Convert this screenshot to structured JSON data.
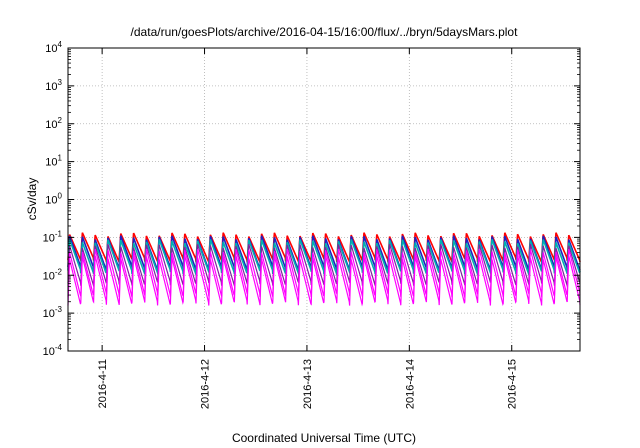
{
  "chart_data": {
    "type": "line",
    "title": "/data/run/goesPlots/archive/2016-04-15/16:00/flux/../bryn/5daysMars.plot",
    "xlabel": "Coordinated Universal Time (UTC)",
    "ylabel": "cSv/day",
    "yscale": "log",
    "ylim": [
      0.0001,
      10000
    ],
    "y_ticks": [
      {
        "base": "10",
        "exp": "-4",
        "value": 0.0001
      },
      {
        "base": "10",
        "exp": "-3",
        "value": 0.001
      },
      {
        "base": "10",
        "exp": "-2",
        "value": 0.01
      },
      {
        "base": "10",
        "exp": "-1",
        "value": 0.1
      },
      {
        "base": "10",
        "exp": "0",
        "value": 1
      },
      {
        "base": "10",
        "exp": "1",
        "value": 10
      },
      {
        "base": "10",
        "exp": "2",
        "value": 100
      },
      {
        "base": "10",
        "exp": "3",
        "value": 1000
      },
      {
        "base": "10",
        "exp": "4",
        "value": 10000
      }
    ],
    "xlim": [
      "2016-04-10T16:00",
      "2016-04-15T16:00"
    ],
    "x_ticks": [
      "2016-4-11",
      "2016-4-12",
      "2016-4-13",
      "2016-4-14",
      "2016-4-15"
    ],
    "grid": true,
    "legend": "none",
    "pattern": {
      "cycle_hours": 3,
      "description_values": "repeating sawtooth dose-rate cycles"
    },
    "series": [
      {
        "color": "#ff0000",
        "peak": 0.12,
        "trough": 0.025
      },
      {
        "color": "#2020c0",
        "peak": 0.1,
        "trough": 0.015
      },
      {
        "color": "#00b0b0",
        "peak": 0.08,
        "trough": 0.012
      },
      {
        "color": "#8020a0",
        "peak": 0.06,
        "trough": 0.006
      },
      {
        "color": "#ff00ff",
        "peak": 0.045,
        "trough": 0.003
      },
      {
        "color": "#ff00ff",
        "peak": 0.03,
        "trough": 0.0018
      }
    ]
  }
}
